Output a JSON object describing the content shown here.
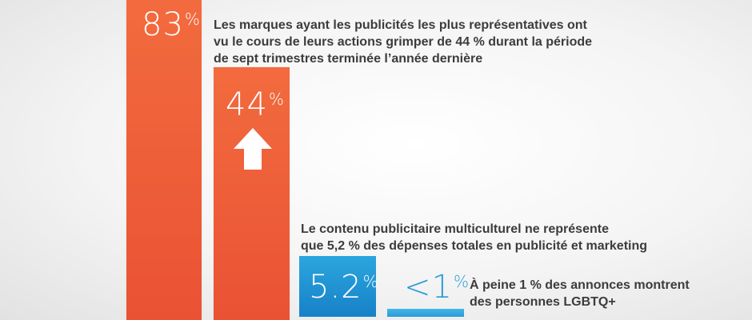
{
  "chart_data": {
    "type": "bar",
    "series": [
      {
        "value": 83,
        "display": "83",
        "unit": "%",
        "color": "#ef5d37"
      },
      {
        "value": 44,
        "display": "44",
        "unit": "%",
        "color": "#ef5d37"
      },
      {
        "value": 5.2,
        "display": "5.2",
        "unit": "%",
        "color": "#1f8fd2"
      },
      {
        "value": 1,
        "display": "<1",
        "unit": "%",
        "color": "#2ba6de"
      }
    ],
    "annotations": [
      {
        "target": "44%",
        "lines": [
          "Les marques ayant les publicités les plus représentatives ont",
          "vu le cours de leurs actions grimper de 44 % durant la période",
          "de sept trimestres terminée l’année dernière"
        ]
      },
      {
        "target": "5.2%",
        "lines": [
          "Le contenu publicitaire multiculturel ne représente",
          "que 5,2 % des dépenses totales en publicité et marketing"
        ]
      },
      {
        "target": "<1%",
        "lines": [
          "À peine 1 % des annonces montrent",
          "des personnes LGBTQ+"
        ]
      }
    ],
    "icons": [
      "up-arrow-icon"
    ]
  }
}
